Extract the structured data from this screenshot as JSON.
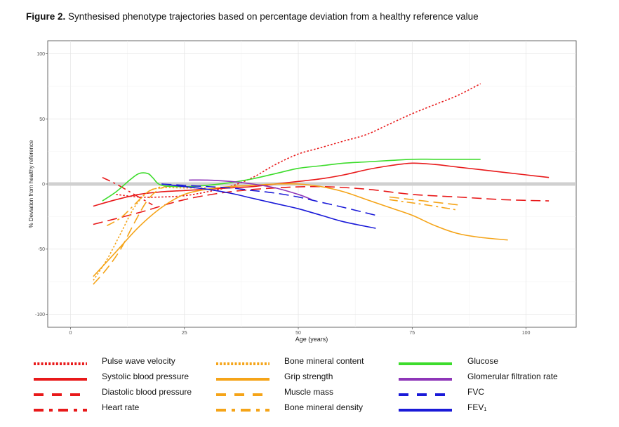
{
  "caption": {
    "label": "Figure 2.",
    "text": "Synthesised phenotype trajectories based on percentage deviation from a healthy reference value"
  },
  "chart_data": {
    "type": "line",
    "xlabel": "Age (years)",
    "ylabel": "% Deviation from healthy reference",
    "xlim": [
      -5,
      111
    ],
    "ylim": [
      -110,
      110
    ],
    "x_ticks": [
      0,
      25,
      50,
      75,
      100
    ],
    "y_ticks": [
      -100,
      -50,
      0,
      50,
      100
    ],
    "grid": true,
    "reference_line": 0,
    "colors": {
      "red": "#e8191a",
      "orange": "#f5a418",
      "green": "#3ddc2c",
      "purple": "#8e36b8",
      "blue": "#1a1ad8"
    },
    "series": [
      {
        "name": "Pulse wave velocity",
        "color": "red",
        "dash": "dot",
        "x": [
          10,
          15,
          20,
          25,
          30,
          35,
          40,
          45,
          50,
          55,
          60,
          65,
          70,
          75,
          80,
          85,
          90
        ],
        "y": [
          -8,
          -10,
          -10,
          -9,
          -6,
          -2,
          5,
          15,
          23,
          28,
          33,
          38,
          46,
          54,
          61,
          68,
          77
        ]
      },
      {
        "name": "Systolic blood pressure",
        "color": "red",
        "dash": "solid",
        "x": [
          5,
          10,
          15,
          20,
          25,
          30,
          35,
          40,
          45,
          50,
          55,
          60,
          65,
          70,
          75,
          80,
          85,
          90,
          95,
          100,
          105
        ],
        "y": [
          -17,
          -12,
          -8,
          -6,
          -5,
          -4,
          -3,
          -2,
          0,
          2,
          4,
          7,
          11,
          14,
          16,
          15,
          13,
          11,
          9,
          7,
          5
        ]
      },
      {
        "name": "Diastolic blood pressure",
        "color": "red",
        "dash": "dash",
        "x": [
          5,
          15,
          25,
          35,
          45,
          55,
          65,
          75,
          85,
          95,
          105
        ],
        "y": [
          -31,
          -22,
          -12,
          -6,
          -3,
          -2,
          -4,
          -8,
          -10,
          -12,
          -13
        ]
      },
      {
        "name": "Heart rate",
        "color": "red",
        "dash": "dashdot",
        "x": [
          7,
          10,
          13,
          16,
          18
        ],
        "y": [
          5,
          0,
          -6,
          -12,
          -16
        ]
      },
      {
        "name": "Bone mineral content",
        "color": "orange",
        "dash": "dot",
        "x": [
          5,
          8,
          11,
          14,
          17,
          20,
          25,
          30
        ],
        "y": [
          -74,
          -58,
          -38,
          -18,
          -6,
          -3,
          -3,
          -3
        ]
      },
      {
        "name": "Grip strength",
        "color": "orange",
        "dash": "solid",
        "x": [
          5,
          10,
          15,
          20,
          25,
          30,
          35,
          40,
          45,
          50,
          55,
          60,
          65,
          70,
          75,
          80,
          85,
          90,
          96
        ],
        "y": [
          -71,
          -52,
          -33,
          -18,
          -8,
          -4,
          -2,
          -1,
          0,
          0,
          -2,
          -6,
          -12,
          -18,
          -24,
          -32,
          -38,
          -41,
          -43
        ]
      },
      {
        "name": "Muscle mass",
        "color": "orange",
        "dash": "dash",
        "x": [
          5,
          8,
          11,
          14,
          17,
          20,
          23,
          70,
          85
        ],
        "y": [
          -77,
          -65,
          -50,
          -30,
          -12,
          -3,
          -1,
          -10,
          -16
        ]
      },
      {
        "name": "Bone mineral density",
        "color": "orange",
        "dash": "dashdot",
        "x": [
          8,
          11,
          14,
          17,
          20,
          70,
          78,
          85
        ],
        "y": [
          -32,
          -26,
          -16,
          -6,
          -2,
          -12,
          -16,
          -20
        ]
      },
      {
        "name": "Glucose",
        "color": "green",
        "dash": "solid",
        "x": [
          7,
          10,
          13,
          15,
          17,
          18,
          20,
          25,
          30,
          35,
          40,
          45,
          50,
          55,
          60,
          65,
          70,
          75,
          80,
          85,
          90
        ],
        "y": [
          -13,
          -6,
          3,
          8,
          8,
          5,
          -1,
          -2,
          -1,
          1,
          4,
          8,
          12,
          14,
          16,
          17,
          18,
          19,
          19,
          19,
          19
        ]
      },
      {
        "name": "Glomerular filtration rate",
        "color": "purple",
        "dash": "solid",
        "x": [
          26,
          30,
          35,
          40,
          45,
          50,
          53
        ],
        "y": [
          3,
          3,
          2,
          0,
          -3,
          -8,
          -12
        ]
      },
      {
        "name": "FVC",
        "color": "blue",
        "dash": "dash",
        "x": [
          20,
          25,
          30,
          35,
          40,
          45,
          50,
          55,
          60,
          67
        ],
        "y": [
          0,
          -1,
          -2,
          -3,
          -5,
          -7,
          -10,
          -14,
          -18,
          -24
        ]
      },
      {
        "name": "FEV₁",
        "color": "blue",
        "dash": "solid",
        "x": [
          20,
          25,
          30,
          35,
          40,
          45,
          50,
          55,
          60,
          67
        ],
        "y": [
          0,
          -2,
          -4,
          -7,
          -11,
          -15,
          -19,
          -24,
          -29,
          -34
        ]
      }
    ]
  }
}
